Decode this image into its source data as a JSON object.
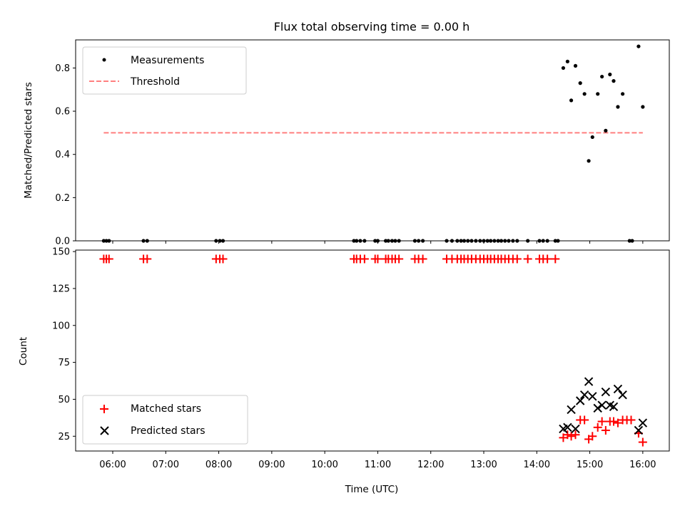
{
  "chart_data": [
    {
      "type": "scatter",
      "title": "Flux total observing time = 0.00 h",
      "ylabel": "Matched/Predicted stars",
      "xlabel": "",
      "xlim": [
        5.3,
        16.5
      ],
      "ylim": [
        0,
        0.93
      ],
      "yticks": [
        0.0,
        0.2,
        0.4,
        0.6,
        0.8
      ],
      "ytick_labels": [
        "0.0",
        "0.2",
        "0.4",
        "0.6",
        "0.8"
      ],
      "grid": false,
      "legend_position": "top-left",
      "series": [
        {
          "name": "Measurements",
          "kind": "dot",
          "color": "#000000",
          "x": [
            5.83,
            5.88,
            5.93,
            6.58,
            6.65,
            7.95,
            8.02,
            8.08,
            10.55,
            10.6,
            10.67,
            10.75,
            10.95,
            11.0,
            11.15,
            11.2,
            11.27,
            11.33,
            11.4,
            11.7,
            11.77,
            11.85,
            12.3,
            12.4,
            12.5,
            12.57,
            12.63,
            12.7,
            12.77,
            12.85,
            12.93,
            13.0,
            13.07,
            13.13,
            13.2,
            13.27,
            13.33,
            13.4,
            13.47,
            13.55,
            13.63,
            13.83,
            14.05,
            14.12,
            14.2,
            14.35,
            14.4,
            14.5,
            14.58,
            14.65,
            14.73,
            14.82,
            14.9,
            14.98,
            15.05,
            15.15,
            15.23,
            15.3,
            15.38,
            15.45,
            15.53,
            15.62,
            15.75,
            15.8,
            15.92,
            16.0
          ],
          "y": [
            0,
            0,
            0,
            0,
            0,
            0,
            0,
            0,
            0,
            0,
            0,
            0,
            0,
            0,
            0,
            0,
            0,
            0,
            0,
            0,
            0,
            0,
            0,
            0,
            0,
            0,
            0,
            0,
            0,
            0,
            0,
            0,
            0,
            0,
            0,
            0,
            0,
            0,
            0,
            0,
            0,
            0,
            0,
            0,
            0,
            0,
            0,
            0.8,
            0.83,
            0.65,
            0.81,
            0.73,
            0.68,
            0.37,
            0.48,
            0.68,
            0.76,
            0.51,
            0.77,
            0.74,
            0.62,
            0.68,
            0,
            0,
            0.9,
            0.62
          ]
        },
        {
          "name": "Threshold",
          "kind": "dashed-line",
          "color": "#ff7f7f",
          "x": [
            5.83,
            16.0
          ],
          "y": [
            0.5,
            0.5
          ]
        }
      ]
    },
    {
      "type": "scatter",
      "title": "",
      "xlabel": "Time (UTC)",
      "ylabel": "Count",
      "xlim": [
        5.3,
        16.5
      ],
      "ylim": [
        15,
        151
      ],
      "yticks": [
        25,
        50,
        75,
        100,
        125,
        150
      ],
      "ytick_labels": [
        "25",
        "50",
        "75",
        "100",
        "125",
        "150"
      ],
      "xticks": [
        6,
        7,
        8,
        9,
        10,
        11,
        12,
        13,
        14,
        15,
        16
      ],
      "xtick_labels": [
        "06:00",
        "07:00",
        "08:00",
        "09:00",
        "10:00",
        "11:00",
        "12:00",
        "13:00",
        "14:00",
        "15:00",
        "16:00"
      ],
      "grid": false,
      "legend_position": "bottom-left",
      "series": [
        {
          "name": "Matched stars",
          "kind": "plus",
          "color": "#ff0000",
          "x": [
            5.83,
            5.88,
            5.93,
            6.58,
            6.65,
            7.95,
            8.02,
            8.08,
            10.55,
            10.6,
            10.67,
            10.75,
            10.95,
            11.0,
            11.15,
            11.2,
            11.27,
            11.33,
            11.4,
            11.7,
            11.77,
            11.85,
            12.3,
            12.4,
            12.5,
            12.57,
            12.63,
            12.7,
            12.77,
            12.85,
            12.93,
            13.0,
            13.07,
            13.13,
            13.2,
            13.27,
            13.33,
            13.4,
            13.47,
            13.55,
            13.63,
            13.83,
            14.05,
            14.12,
            14.2,
            14.35,
            14.5,
            14.58,
            14.65,
            14.73,
            14.82,
            14.9,
            14.98,
            15.05,
            15.15,
            15.23,
            15.3,
            15.38,
            15.45,
            15.53,
            15.62,
            15.7,
            15.78,
            15.92,
            16.0
          ],
          "y": [
            145,
            145,
            145,
            145,
            145,
            145,
            145,
            145,
            145,
            145,
            145,
            145,
            145,
            145,
            145,
            145,
            145,
            145,
            145,
            145,
            145,
            145,
            145,
            145,
            145,
            145,
            145,
            145,
            145,
            145,
            145,
            145,
            145,
            145,
            145,
            145,
            145,
            145,
            145,
            145,
            145,
            145,
            145,
            145,
            145,
            145,
            24,
            26,
            25,
            26,
            36,
            36,
            23,
            25,
            31,
            35,
            29,
            35,
            35,
            34,
            36,
            36,
            36,
            27,
            21
          ]
        },
        {
          "name": "Predicted stars",
          "kind": "x",
          "color": "#000000",
          "x": [
            14.5,
            14.58,
            14.65,
            14.73,
            14.82,
            14.9,
            14.98,
            15.05,
            15.15,
            15.23,
            15.3,
            15.38,
            15.45,
            15.53,
            15.62,
            15.92,
            16.0
          ],
          "y": [
            30,
            31,
            43,
            30,
            49,
            53,
            62,
            52,
            44,
            46,
            55,
            46,
            45,
            57,
            53,
            29,
            34
          ]
        }
      ]
    }
  ]
}
